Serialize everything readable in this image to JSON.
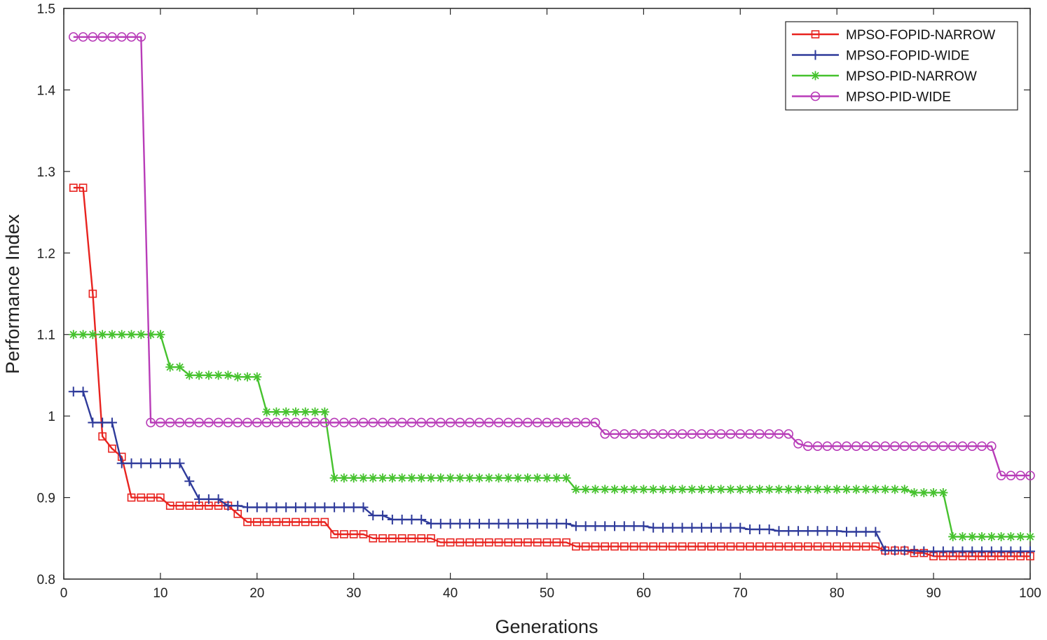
{
  "chart_data": {
    "type": "line",
    "title": "",
    "xlabel": "Generations",
    "ylabel": "Performance Index",
    "xlim": [
      0,
      100
    ],
    "ylim": [
      0.8,
      1.5
    ],
    "xticks": [
      0,
      10,
      20,
      30,
      40,
      50,
      60,
      70,
      80,
      90,
      100
    ],
    "yticks": [
      0.8,
      0.9,
      1,
      1.1,
      1.2,
      1.3,
      1.4,
      1.5
    ],
    "xtick_labels": [
      "0",
      "10",
      "20",
      "30",
      "40",
      "50",
      "60",
      "70",
      "80",
      "90",
      "100"
    ],
    "ytick_labels": [
      "0.8",
      "0.9",
      "1",
      "1.1",
      "1.2",
      "1.3",
      "1.4",
      "1.5"
    ],
    "grid": false,
    "legend_position": "top-right",
    "series": [
      {
        "name": "MPSO-FOPID-NARROW",
        "color": "#e8231f",
        "marker": "square",
        "x": [
          1,
          2,
          3,
          4,
          5,
          6,
          7,
          8,
          9,
          10,
          11,
          12,
          13,
          14,
          15,
          16,
          17,
          18,
          19,
          20,
          21,
          22,
          23,
          24,
          25,
          26,
          27,
          28,
          29,
          30,
          31,
          32,
          33,
          34,
          35,
          36,
          37,
          38,
          39,
          40,
          41,
          42,
          43,
          44,
          45,
          46,
          47,
          48,
          49,
          50,
          51,
          52,
          53,
          54,
          55,
          56,
          57,
          58,
          59,
          60,
          61,
          62,
          63,
          64,
          65,
          66,
          67,
          68,
          69,
          70,
          71,
          72,
          73,
          74,
          75,
          76,
          77,
          78,
          79,
          80,
          81,
          82,
          83,
          84,
          85,
          86,
          87,
          88,
          89,
          90,
          91,
          92,
          93,
          94,
          95,
          96,
          97,
          98,
          99,
          100
        ],
        "y": [
          1.28,
          1.28,
          1.15,
          0.975,
          0.96,
          0.95,
          0.9,
          0.9,
          0.9,
          0.9,
          0.89,
          0.89,
          0.89,
          0.89,
          0.89,
          0.89,
          0.89,
          0.88,
          0.87,
          0.87,
          0.87,
          0.87,
          0.87,
          0.87,
          0.87,
          0.87,
          0.87,
          0.855,
          0.855,
          0.855,
          0.855,
          0.85,
          0.85,
          0.85,
          0.85,
          0.85,
          0.85,
          0.85,
          0.845,
          0.845,
          0.845,
          0.845,
          0.845,
          0.845,
          0.845,
          0.845,
          0.845,
          0.845,
          0.845,
          0.845,
          0.845,
          0.845,
          0.84,
          0.84,
          0.84,
          0.84,
          0.84,
          0.84,
          0.84,
          0.84,
          0.84,
          0.84,
          0.84,
          0.84,
          0.84,
          0.84,
          0.84,
          0.84,
          0.84,
          0.84,
          0.84,
          0.84,
          0.84,
          0.84,
          0.84,
          0.84,
          0.84,
          0.84,
          0.84,
          0.84,
          0.84,
          0.84,
          0.84,
          0.84,
          0.835,
          0.835,
          0.835,
          0.832,
          0.832,
          0.828,
          0.828,
          0.828,
          0.828,
          0.828,
          0.828,
          0.828,
          0.828,
          0.828,
          0.828,
          0.828
        ]
      },
      {
        "name": "MPSO-FOPID-WIDE",
        "color": "#2e3a9a",
        "marker": "plus",
        "x": [
          1,
          2,
          3,
          4,
          5,
          6,
          7,
          8,
          9,
          10,
          11,
          12,
          13,
          14,
          15,
          16,
          17,
          18,
          19,
          20,
          21,
          22,
          23,
          24,
          25,
          26,
          27,
          28,
          29,
          30,
          31,
          32,
          33,
          34,
          35,
          36,
          37,
          38,
          39,
          40,
          41,
          42,
          43,
          44,
          45,
          46,
          47,
          48,
          49,
          50,
          51,
          52,
          53,
          54,
          55,
          56,
          57,
          58,
          59,
          60,
          61,
          62,
          63,
          64,
          65,
          66,
          67,
          68,
          69,
          70,
          71,
          72,
          73,
          74,
          75,
          76,
          77,
          78,
          79,
          80,
          81,
          82,
          83,
          84,
          85,
          86,
          87,
          88,
          89,
          90,
          91,
          92,
          93,
          94,
          95,
          96,
          97,
          98,
          99,
          100
        ],
        "y": [
          1.03,
          1.03,
          0.992,
          0.992,
          0.992,
          0.942,
          0.942,
          0.942,
          0.942,
          0.942,
          0.942,
          0.942,
          0.92,
          0.898,
          0.898,
          0.898,
          0.89,
          0.89,
          0.888,
          0.888,
          0.888,
          0.888,
          0.888,
          0.888,
          0.888,
          0.888,
          0.888,
          0.888,
          0.888,
          0.888,
          0.888,
          0.878,
          0.878,
          0.873,
          0.873,
          0.873,
          0.873,
          0.868,
          0.868,
          0.868,
          0.868,
          0.868,
          0.868,
          0.868,
          0.868,
          0.868,
          0.868,
          0.868,
          0.868,
          0.868,
          0.868,
          0.868,
          0.865,
          0.865,
          0.865,
          0.865,
          0.865,
          0.865,
          0.865,
          0.865,
          0.863,
          0.863,
          0.863,
          0.863,
          0.863,
          0.863,
          0.863,
          0.863,
          0.863,
          0.863,
          0.861,
          0.861,
          0.861,
          0.859,
          0.859,
          0.859,
          0.859,
          0.859,
          0.859,
          0.859,
          0.858,
          0.858,
          0.858,
          0.858,
          0.835,
          0.835,
          0.835,
          0.835,
          0.834,
          0.834,
          0.834,
          0.834,
          0.834,
          0.834,
          0.834,
          0.834,
          0.834,
          0.834,
          0.834,
          0.834
        ]
      },
      {
        "name": "MPSO-PID-NARROW",
        "color": "#46c22e",
        "marker": "asterisk",
        "x": [
          1,
          2,
          3,
          4,
          5,
          6,
          7,
          8,
          9,
          10,
          11,
          12,
          13,
          14,
          15,
          16,
          17,
          18,
          19,
          20,
          21,
          22,
          23,
          24,
          25,
          26,
          27,
          28,
          29,
          30,
          31,
          32,
          33,
          34,
          35,
          36,
          37,
          38,
          39,
          40,
          41,
          42,
          43,
          44,
          45,
          46,
          47,
          48,
          49,
          50,
          51,
          52,
          53,
          54,
          55,
          56,
          57,
          58,
          59,
          60,
          61,
          62,
          63,
          64,
          65,
          66,
          67,
          68,
          69,
          70,
          71,
          72,
          73,
          74,
          75,
          76,
          77,
          78,
          79,
          80,
          81,
          82,
          83,
          84,
          85,
          86,
          87,
          88,
          89,
          90,
          91,
          92,
          93,
          94,
          95,
          96,
          97,
          98,
          99,
          100
        ],
        "y": [
          1.1,
          1.1,
          1.1,
          1.1,
          1.1,
          1.1,
          1.1,
          1.1,
          1.1,
          1.1,
          1.06,
          1.06,
          1.05,
          1.05,
          1.05,
          1.05,
          1.05,
          1.048,
          1.048,
          1.048,
          1.005,
          1.005,
          1.005,
          1.005,
          1.005,
          1.005,
          1.005,
          0.924,
          0.924,
          0.924,
          0.924,
          0.924,
          0.924,
          0.924,
          0.924,
          0.924,
          0.924,
          0.924,
          0.924,
          0.924,
          0.924,
          0.924,
          0.924,
          0.924,
          0.924,
          0.924,
          0.924,
          0.924,
          0.924,
          0.924,
          0.924,
          0.924,
          0.91,
          0.91,
          0.91,
          0.91,
          0.91,
          0.91,
          0.91,
          0.91,
          0.91,
          0.91,
          0.91,
          0.91,
          0.91,
          0.91,
          0.91,
          0.91,
          0.91,
          0.91,
          0.91,
          0.91,
          0.91,
          0.91,
          0.91,
          0.91,
          0.91,
          0.91,
          0.91,
          0.91,
          0.91,
          0.91,
          0.91,
          0.91,
          0.91,
          0.91,
          0.91,
          0.906,
          0.906,
          0.906,
          0.906,
          0.852,
          0.852,
          0.852,
          0.852,
          0.852,
          0.852,
          0.852,
          0.852,
          0.852
        ]
      },
      {
        "name": "MPSO-PID-WIDE",
        "color": "#b83cb8",
        "marker": "circle",
        "x": [
          1,
          2,
          3,
          4,
          5,
          6,
          7,
          8,
          9,
          10,
          11,
          12,
          13,
          14,
          15,
          16,
          17,
          18,
          19,
          20,
          21,
          22,
          23,
          24,
          25,
          26,
          27,
          28,
          29,
          30,
          31,
          32,
          33,
          34,
          35,
          36,
          37,
          38,
          39,
          40,
          41,
          42,
          43,
          44,
          45,
          46,
          47,
          48,
          49,
          50,
          51,
          52,
          53,
          54,
          55,
          56,
          57,
          58,
          59,
          60,
          61,
          62,
          63,
          64,
          65,
          66,
          67,
          68,
          69,
          70,
          71,
          72,
          73,
          74,
          75,
          76,
          77,
          78,
          79,
          80,
          81,
          82,
          83,
          84,
          85,
          86,
          87,
          88,
          89,
          90,
          91,
          92,
          93,
          94,
          95,
          96,
          97,
          98,
          99,
          100
        ],
        "y": [
          1.465,
          1.465,
          1.465,
          1.465,
          1.465,
          1.465,
          1.465,
          1.465,
          0.992,
          0.992,
          0.992,
          0.992,
          0.992,
          0.992,
          0.992,
          0.992,
          0.992,
          0.992,
          0.992,
          0.992,
          0.992,
          0.992,
          0.992,
          0.992,
          0.992,
          0.992,
          0.992,
          0.992,
          0.992,
          0.992,
          0.992,
          0.992,
          0.992,
          0.992,
          0.992,
          0.992,
          0.992,
          0.992,
          0.992,
          0.992,
          0.992,
          0.992,
          0.992,
          0.992,
          0.992,
          0.992,
          0.992,
          0.992,
          0.992,
          0.992,
          0.992,
          0.992,
          0.992,
          0.992,
          0.992,
          0.978,
          0.978,
          0.978,
          0.978,
          0.978,
          0.978,
          0.978,
          0.978,
          0.978,
          0.978,
          0.978,
          0.978,
          0.978,
          0.978,
          0.978,
          0.978,
          0.978,
          0.978,
          0.978,
          0.978,
          0.966,
          0.963,
          0.963,
          0.963,
          0.963,
          0.963,
          0.963,
          0.963,
          0.963,
          0.963,
          0.963,
          0.963,
          0.963,
          0.963,
          0.963,
          0.963,
          0.963,
          0.963,
          0.963,
          0.963,
          0.963,
          0.927,
          0.927,
          0.927,
          0.927
        ]
      }
    ]
  }
}
